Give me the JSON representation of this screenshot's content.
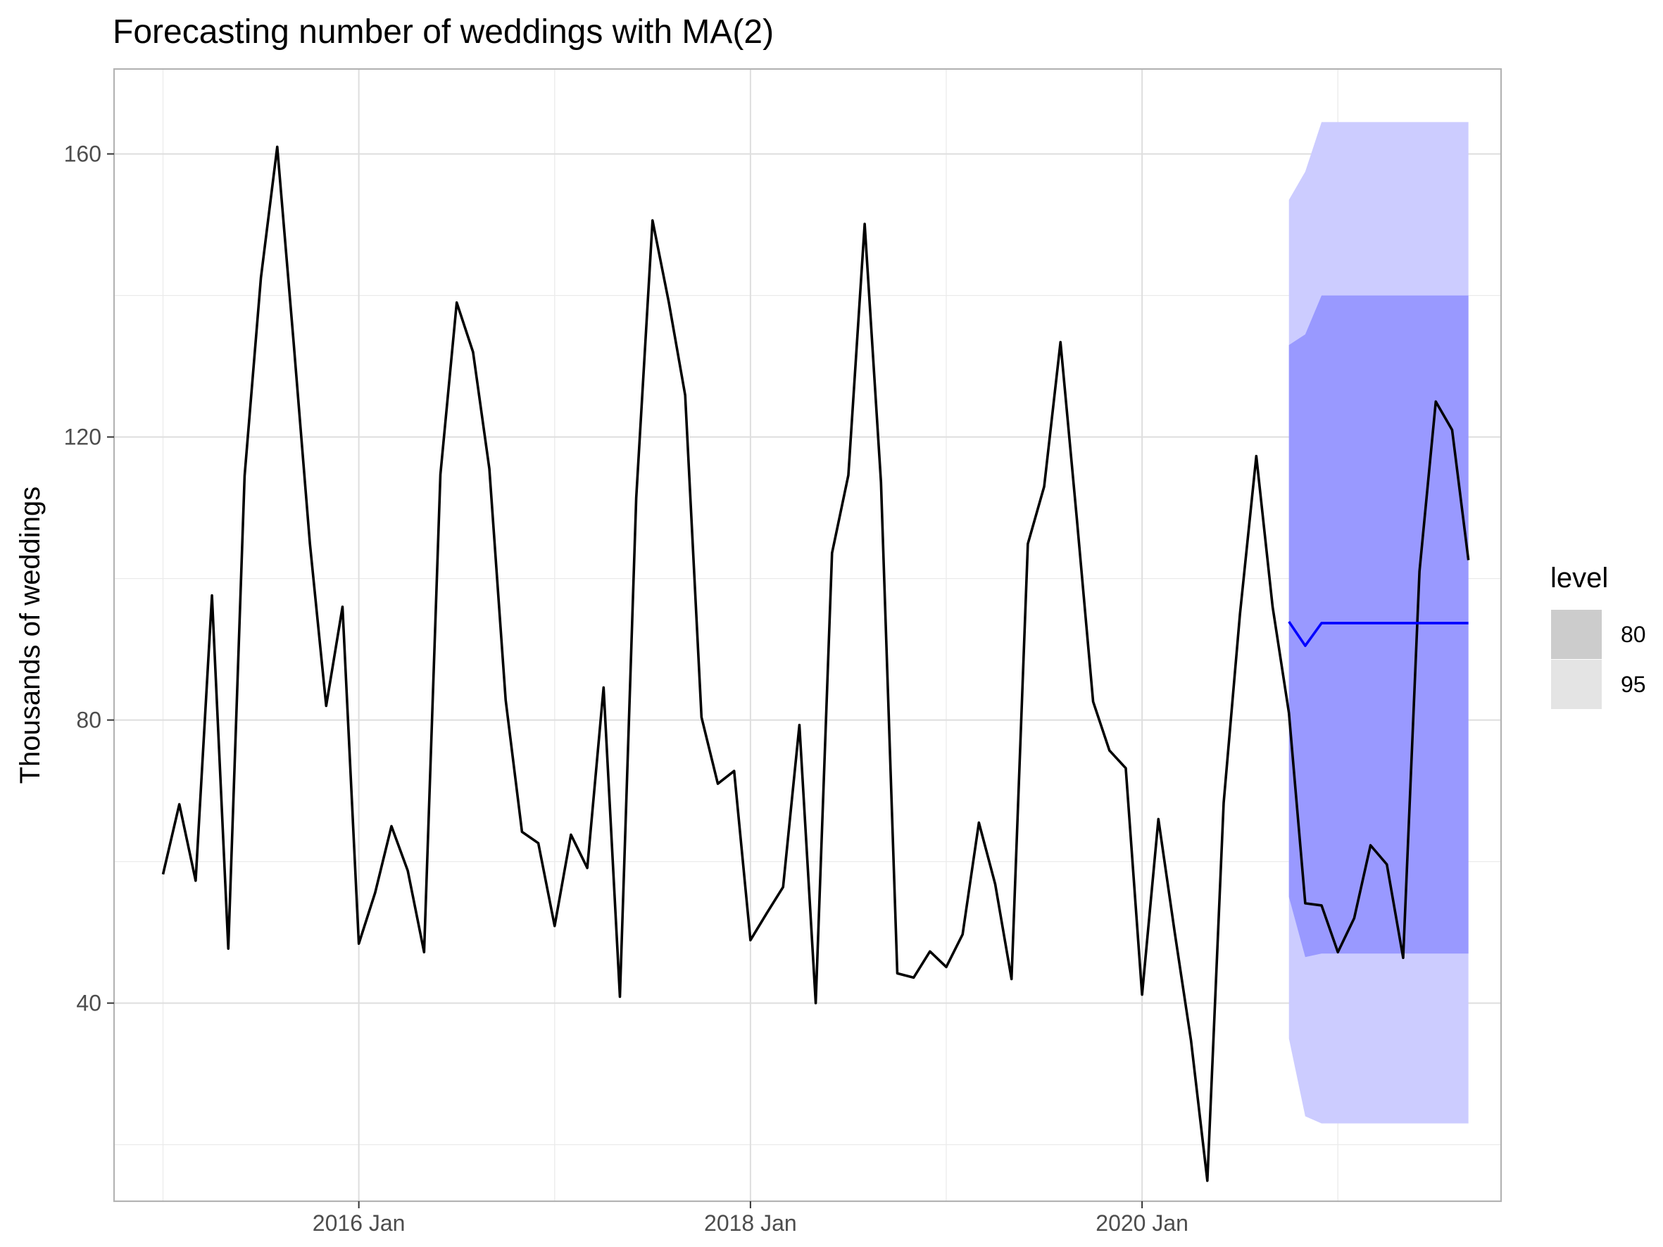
{
  "chart_data": {
    "type": "line",
    "title": "Forecasting number of weddings with MA(2)",
    "xlabel": "",
    "ylabel": "Thousands of weddings",
    "xlim": [
      "2014-10",
      "2021-11"
    ],
    "ylim": [
      12,
      172
    ],
    "grid": true,
    "x_ticks": [
      "2016-01",
      "2018-01",
      "2020-01"
    ],
    "x_tick_labels": [
      "2016 Jan",
      "2018 Jan",
      "2020 Jan"
    ],
    "y_ticks": [
      40,
      80,
      120,
      160
    ],
    "y_tick_labels": [
      "40",
      "80",
      "120",
      "160"
    ],
    "legend": {
      "title": "level",
      "placement": "right",
      "entries": [
        {
          "label": "80",
          "color": "#cccccc"
        },
        {
          "label": "95",
          "color": "#e4e4e4"
        }
      ]
    },
    "series": [
      {
        "role": "observed",
        "color": "#000000",
        "x": [
          "2015-01",
          "2015-02",
          "2015-03",
          "2015-04",
          "2015-05",
          "2015-06",
          "2015-07",
          "2015-08",
          "2015-09",
          "2015-10",
          "2015-11",
          "2015-12",
          "2016-01",
          "2016-02",
          "2016-03",
          "2016-04",
          "2016-05",
          "2016-06",
          "2016-07",
          "2016-08",
          "2016-09",
          "2016-10",
          "2016-11",
          "2016-12",
          "2017-01",
          "2017-02",
          "2017-03",
          "2017-04",
          "2017-05",
          "2017-06",
          "2017-07",
          "2017-08",
          "2017-09",
          "2017-10",
          "2017-11",
          "2017-12",
          "2018-01",
          "2018-02",
          "2018-03",
          "2018-04",
          "2018-05",
          "2018-06",
          "2018-07",
          "2018-08",
          "2018-09",
          "2018-10",
          "2018-11",
          "2018-12",
          "2019-01",
          "2019-02",
          "2019-03",
          "2019-04",
          "2019-05",
          "2019-06",
          "2019-07",
          "2019-08",
          "2019-09",
          "2019-10",
          "2019-11",
          "2019-12",
          "2020-01",
          "2020-02",
          "2020-03",
          "2020-04",
          "2020-05",
          "2020-06",
          "2020-07",
          "2020-08",
          "2020-09",
          "2020-10",
          "2020-11",
          "2020-12",
          "2021-01",
          "2021-02",
          "2021-03",
          "2021-04",
          "2021-05",
          "2021-06",
          "2021-07",
          "2021-08",
          "2021-09"
        ],
        "values": [
          58.2,
          68.1,
          57.3,
          97.6,
          47.7,
          114.5,
          142.5,
          161.0,
          133.5,
          105.0,
          82.0,
          96.0,
          48.4,
          55.6,
          65.0,
          58.7,
          47.2,
          114.7,
          139.0,
          132.0,
          115.5,
          82.8,
          64.2,
          62.6,
          50.9,
          63.8,
          59.1,
          84.6,
          40.9,
          111.4,
          150.6,
          139.0,
          125.9,
          80.4,
          71.0,
          72.8,
          48.9,
          52.7,
          56.4,
          79.3,
          40.0,
          103.6,
          114.6,
          150.1,
          113.6,
          44.2,
          43.6,
          47.3,
          45.1,
          49.7,
          65.5,
          56.8,
          43.4,
          104.9,
          113.0,
          133.4,
          108.5,
          82.6,
          75.7,
          73.2,
          41.2,
          66.0,
          50.0,
          34.7,
          14.9,
          68.3,
          95.0,
          117.3,
          96.0,
          81.0,
          54.1,
          53.8,
          47.2,
          52.0,
          62.3,
          59.6,
          46.4,
          101.0,
          125.0,
          121.0,
          102.6
        ]
      },
      {
        "role": "forecast",
        "color": "#0000ff",
        "x": [
          "2020-10",
          "2020-11",
          "2020-12",
          "2021-01",
          "2021-02",
          "2021-03",
          "2021-04",
          "2021-05",
          "2021-06",
          "2021-07",
          "2021-08",
          "2021-09"
        ],
        "values": [
          93.9,
          90.5,
          93.7,
          93.7,
          93.7,
          93.7,
          93.7,
          93.7,
          93.7,
          93.7,
          93.7,
          93.7
        ]
      }
    ],
    "intervals": [
      {
        "level": "95",
        "color": "#ccccff",
        "x": [
          "2020-10",
          "2020-11",
          "2020-12",
          "2021-01",
          "2021-02",
          "2021-03",
          "2021-04",
          "2021-05",
          "2021-06",
          "2021-07",
          "2021-08",
          "2021-09"
        ],
        "lower": [
          35.0,
          24.0,
          23.0,
          23.0,
          23.0,
          23.0,
          23.0,
          23.0,
          23.0,
          23.0,
          23.0,
          23.0
        ],
        "upper": [
          153.5,
          157.5,
          164.5,
          164.5,
          164.5,
          164.5,
          164.5,
          164.5,
          164.5,
          164.5,
          164.5,
          164.5
        ]
      },
      {
        "level": "80",
        "color": "#9999ff",
        "x": [
          "2020-10",
          "2020-11",
          "2020-12",
          "2021-01",
          "2021-02",
          "2021-03",
          "2021-04",
          "2021-05",
          "2021-06",
          "2021-07",
          "2021-08",
          "2021-09"
        ],
        "lower": [
          55.0,
          46.5,
          47.0,
          47.0,
          47.0,
          47.0,
          47.0,
          47.0,
          47.0,
          47.0,
          47.0,
          47.0
        ],
        "upper": [
          133.0,
          134.5,
          140.0,
          140.0,
          140.0,
          140.0,
          140.0,
          140.0,
          140.0,
          140.0,
          140.0,
          140.0
        ]
      }
    ]
  }
}
